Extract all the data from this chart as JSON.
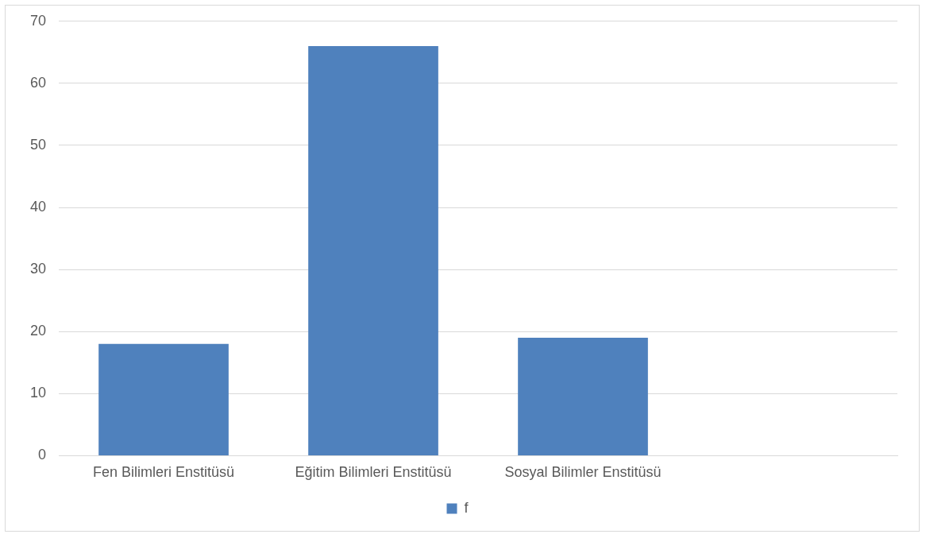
{
  "chart_data": {
    "type": "bar",
    "categories": [
      "Fen Bilimleri Enstitüsü",
      "Eğitim Bilimleri Enstitüsü",
      "Sosyal Bilimler Enstitüsü",
      null
    ],
    "series": [
      {
        "name": "f",
        "color": "#4f81bd",
        "values": [
          18,
          66,
          19,
          null
        ]
      }
    ],
    "ylim": [
      0,
      70
    ],
    "yticks": [
      0,
      10,
      20,
      30,
      40,
      50,
      60,
      70
    ],
    "grid": "y",
    "legend": "bottom"
  }
}
